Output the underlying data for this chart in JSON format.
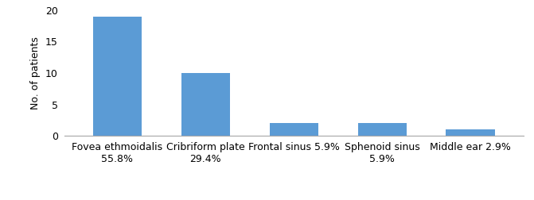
{
  "categories_line1": [
    "Fovea ethmoidalis",
    "Cribriform plate",
    "Frontal sinus 5.9%",
    "Sphenoid sinus",
    "Middle ear 2.9%"
  ],
  "categories_line2": [
    "55.8%",
    "29.4%",
    "",
    "5.9%",
    ""
  ],
  "values": [
    19,
    10,
    2,
    2,
    1
  ],
  "bar_color": "#5b9bd5",
  "ylabel": "No. of patients",
  "ylim": [
    0,
    20
  ],
  "yticks": [
    0,
    5,
    10,
    15,
    20
  ],
  "bar_width": 0.55,
  "background_color": "#ffffff",
  "spine_color": "#aaaaaa",
  "tick_fontsize": 9,
  "ylabel_fontsize": 9
}
